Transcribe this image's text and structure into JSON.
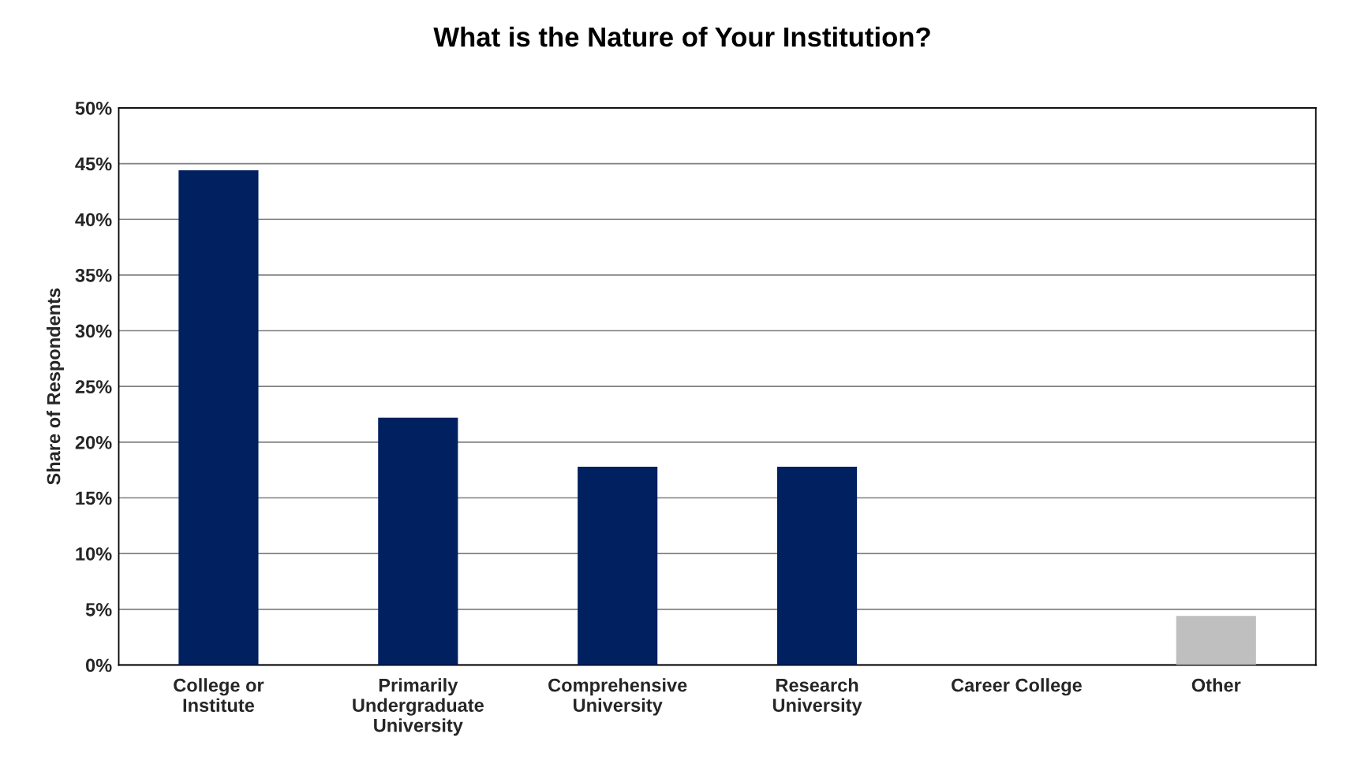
{
  "chart_data": {
    "type": "bar",
    "title": "What is the Nature of Your Institution?",
    "ylabel": "Share of Respondents",
    "categories": [
      "College or\nInstitute",
      "Primarily\nUndergraduate\nUniversity",
      "Comprehensive\nUniversity",
      "Research\nUniversity",
      "Career College",
      "Other"
    ],
    "values": [
      44.4,
      22.2,
      17.8,
      17.8,
      0,
      4.4
    ],
    "colors": [
      "#002060",
      "#002060",
      "#002060",
      "#002060",
      null,
      "#bfbfbf"
    ],
    "ylim": [
      0,
      50
    ],
    "yticks": [
      {
        "value": 0,
        "label": "0%"
      },
      {
        "value": 5,
        "label": "5%"
      },
      {
        "value": 10,
        "label": "10%"
      },
      {
        "value": 15,
        "label": "15%"
      },
      {
        "value": 20,
        "label": "20%"
      },
      {
        "value": 25,
        "label": "25%"
      },
      {
        "value": 30,
        "label": "30%"
      },
      {
        "value": 35,
        "label": "35%"
      },
      {
        "value": 40,
        "label": "40%"
      },
      {
        "value": 45,
        "label": "45%"
      },
      {
        "value": 50,
        "label": "50%"
      }
    ],
    "grid": "y",
    "legend": false
  }
}
